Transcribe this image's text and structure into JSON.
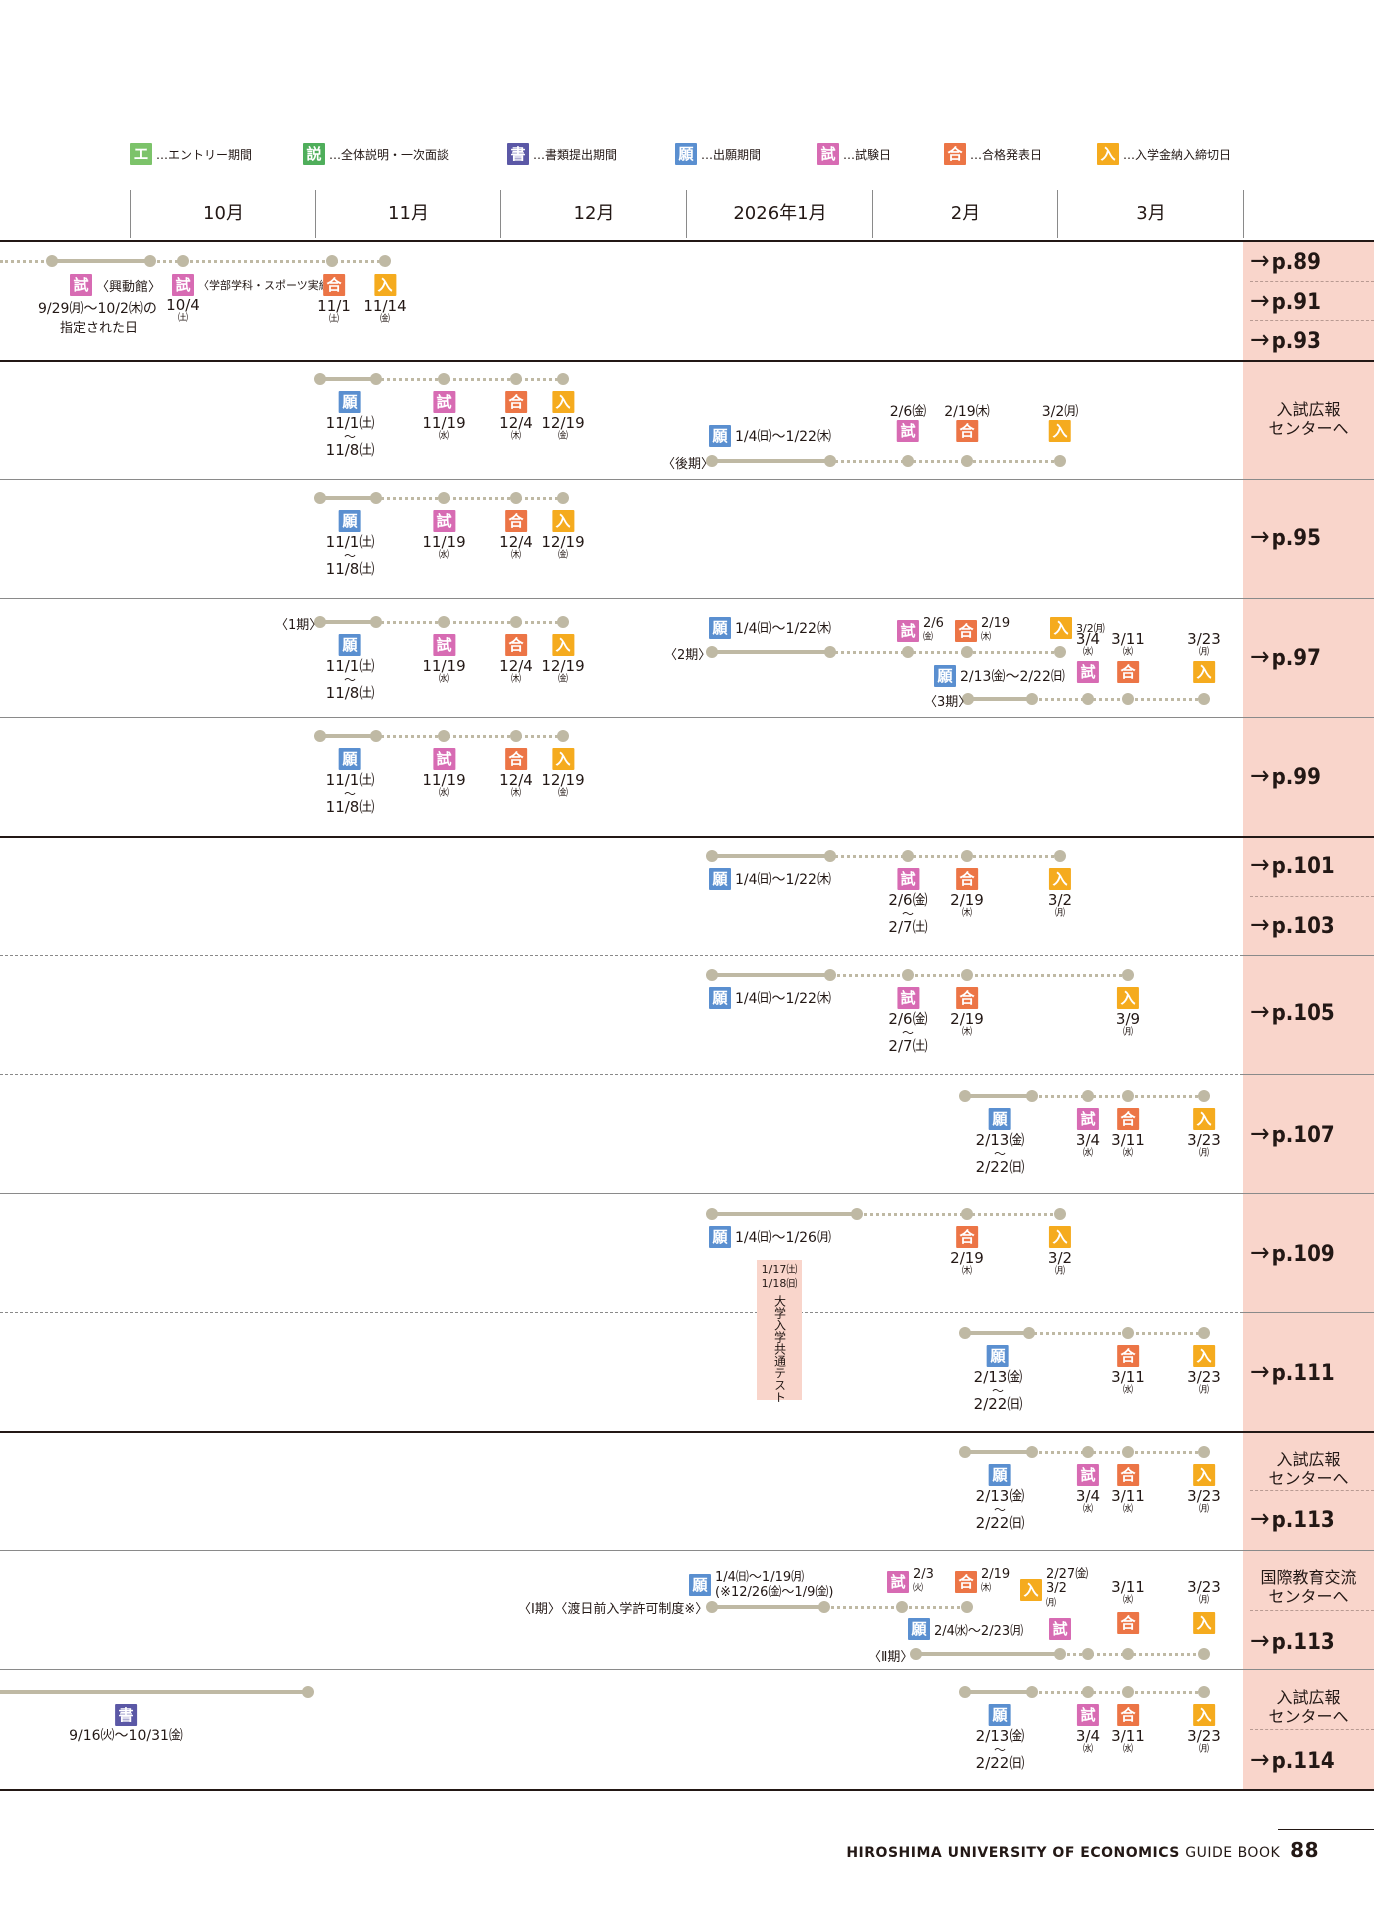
{
  "legend": [
    {
      "icon": "エ",
      "text": "…エントリー期間",
      "cls": "b-entry",
      "left": 130
    },
    {
      "icon": "説",
      "text": "…全体説明・一次面談",
      "cls": "b-setsu",
      "left": 303
    },
    {
      "icon": "書",
      "text": "…書類提出期間",
      "cls": "b-sho",
      "left": 507
    },
    {
      "icon": "願",
      "text": "…出願期間",
      "cls": "b-gan",
      "left": 675
    },
    {
      "icon": "試",
      "text": "…試験日",
      "cls": "b-shi",
      "left": 817
    },
    {
      "icon": "合",
      "text": "…合格発表日",
      "cls": "b-go",
      "left": 944
    },
    {
      "icon": "入",
      "text": "…入学金納入締切日",
      "cls": "b-nyu",
      "left": 1097
    }
  ],
  "months": [
    "10月",
    "11月",
    "12月",
    "2026年1月",
    "2月",
    "3月"
  ],
  "refs": {
    "r1": "p.89",
    "r2": "p.91",
    "r3": "p.93",
    "r4": "p.95",
    "r5": "p.97",
    "r6": "p.99",
    "r7": "p.101",
    "r8": "p.103",
    "r9": "p.105",
    "r10": "p.107",
    "r11": "p.109",
    "r12": "p.111",
    "r13": "p.113",
    "r14": "p.113",
    "r15": "p.114"
  },
  "centers": {
    "c1": "入試広報\nセンターへ",
    "c2": "入試広報\nセンターへ",
    "c3": "国際教育交流\nセンターへ",
    "c4": "入試広報\nセンターへ"
  },
  "badges": {
    "gan": "願",
    "shi": "試",
    "go": "合",
    "nyu": "入",
    "sho": "書"
  },
  "texts": {
    "kodokan": "〈興動館〉",
    "gakubu": "〈学部学科・スポーツ実績〉",
    "r1_date1": "9/29㈪〜10/2㈭の",
    "r1_date2": "指定された日",
    "r1_ex2": "10/4",
    "r1_ex2w": "㈯",
    "nov1": "11/1",
    "nov1w": "㈯",
    "nov14": "11/14",
    "nov14w": "㈮",
    "gan_nov": "11/1㈯",
    "tilde": "〜",
    "gan_nov2": "11/8㈯",
    "shi_nov": "11/19",
    "shi_novw": "㈬",
    "go_dec": "12/4",
    "go_decw": "㈭",
    "nyu_dec": "12/19",
    "nyu_decw": "㈮",
    "koki": "〈後期〉",
    "gan_jan": "1/4㈰〜1/22㈭",
    "feb6": "2/6㈮",
    "feb19": "2/19㈭",
    "mar2": "3/2㈪",
    "ki1": "〈1期〉",
    "ki2": "〈2期〉",
    "ki3": "〈3期〉",
    "r5_feb6": "2/6",
    "r5_feb6w": "㈮",
    "r5_feb19": "2/19",
    "r5_feb19w": "㈭",
    "r5_mar2": "3/2㈪",
    "mar4": "3/4",
    "mar4w": "㈬",
    "mar11": "3/11",
    "mar11w": "㈬",
    "mar23": "3/23",
    "mar23w": "㈪",
    "gan_feb": "2/13㈮〜2/22㈰",
    "feb6_7a": "2/6㈮",
    "feb6_7b": "2/7㈯",
    "feb19d": "2/19",
    "feb19dw": "㈭",
    "mar2d": "3/2",
    "mar2dw": "㈪",
    "mar9": "3/9",
    "mar9w": "㈪",
    "gan_feb13": "2/13㈮",
    "gan_feb22": "2/22㈰",
    "gan_jan26": "1/4㈰〜1/26㈪",
    "k1": "1/17㈯",
    "k2": "1/18㈰",
    "k3": "大学入学共通テスト",
    "r14_gan1": "1/4㈰〜1/19㈪",
    "r14_gan2": "(※12/26㈮〜1/9㈮)",
    "r14_ki": "〈Ⅰ期〉〈渡日前入学許可制度※〉",
    "r14_feb3": "2/3",
    "r14_feb3w": "㈫",
    "r14_feb19": "2/19",
    "r14_feb19w": "㈭",
    "r14_feb27": "2/27㈮",
    "r14_mar2": "3/2",
    "r14_mar2w": "㈪",
    "r14_ki2": "〈Ⅱ期〉",
    "r14_gan3": "2/4㈬〜2/23㈪",
    "sho_date": "9/16㈫〜10/31㈮"
  },
  "footer": {
    "brand": "HIROSHIMA UNIVERSITY OF ECONOMICS",
    "gb": "GUIDE BOOK",
    "page": "88"
  }
}
